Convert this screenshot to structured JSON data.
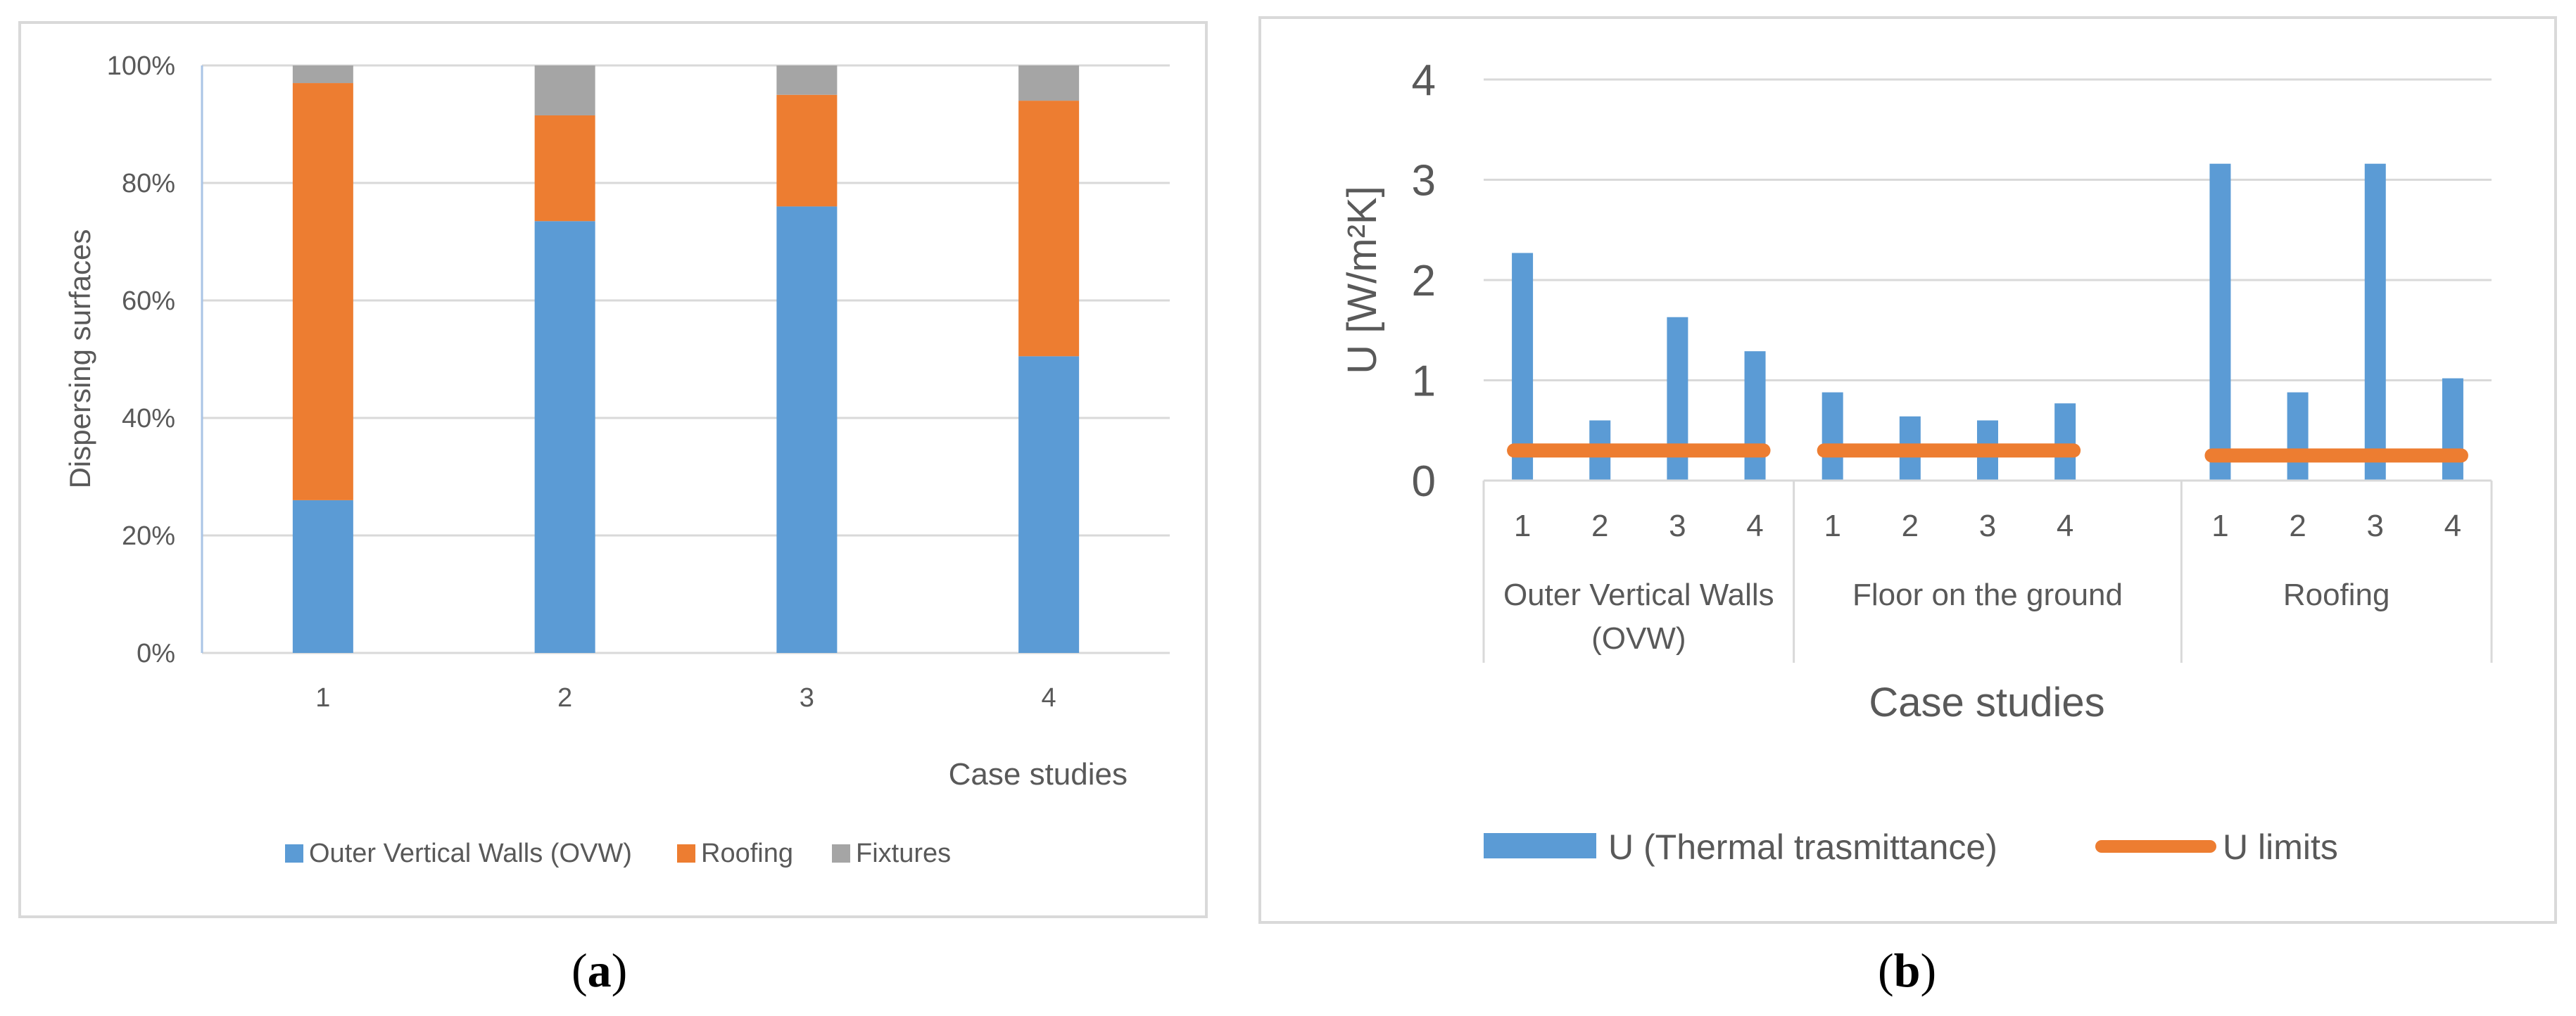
{
  "captions": {
    "a_letter": "a",
    "b_letter": "b",
    "open": "(",
    "close": ")"
  },
  "colors": {
    "blue": "#5b9bd5",
    "orange": "#ed7d31",
    "gray": "#a5a5a5",
    "grid": "#d9d9d9",
    "text": "#595959"
  },
  "chart_data": [
    {
      "type": "bar",
      "stacked": true,
      "panel": "a",
      "title": "",
      "xlabel": "Case studies",
      "ylabel": "Dispersing surfaces",
      "ylim": [
        0,
        100
      ],
      "yticks": [
        "0%",
        "20%",
        "40%",
        "60%",
        "80%",
        "100%"
      ],
      "categories": [
        "1",
        "2",
        "3",
        "4"
      ],
      "series": [
        {
          "name": "Outer Vertical Walls (OVW)",
          "color": "#5b9bd5",
          "values": [
            26,
            73.5,
            76,
            50.5
          ]
        },
        {
          "name": "Roofing",
          "color": "#ed7d31",
          "values": [
            71,
            18,
            19,
            43.5
          ]
        },
        {
          "name": "Fixtures",
          "color": "#a5a5a5",
          "values": [
            3,
            8.5,
            5,
            6
          ]
        }
      ],
      "legend_position": "bottom"
    },
    {
      "type": "bar",
      "panel": "b",
      "title": "",
      "xlabel": "Case studies",
      "ylabel": "U [W/m²K]",
      "ylim": [
        0,
        4
      ],
      "yticks": [
        "0",
        "1",
        "2",
        "3",
        "4"
      ],
      "groups": [
        {
          "label_lines": [
            "Outer Vertical Walls",
            "(OVW)"
          ],
          "categories": [
            "1",
            "2",
            "3",
            "4"
          ],
          "values": [
            2.27,
            0.6,
            1.63,
            1.29
          ],
          "limit": 0.3
        },
        {
          "label_lines": [
            "Floor on the ground"
          ],
          "categories": [
            "1",
            "2",
            "3",
            "4",
            ""
          ],
          "values": [
            0.88,
            0.64,
            0.6,
            0.77,
            null
          ],
          "limit": 0.3
        },
        {
          "label_lines": [
            "Roofing"
          ],
          "categories": [
            "1",
            "2",
            "3",
            "4"
          ],
          "values": [
            3.16,
            0.88,
            3.16,
            1.02
          ],
          "limit": 0.25
        }
      ],
      "series": [
        {
          "name": "U (Thermal trasmittance)",
          "color": "#5b9bd5",
          "kind": "bar"
        },
        {
          "name": "U limits",
          "color": "#ed7d31",
          "kind": "line"
        }
      ],
      "legend_position": "bottom"
    }
  ]
}
